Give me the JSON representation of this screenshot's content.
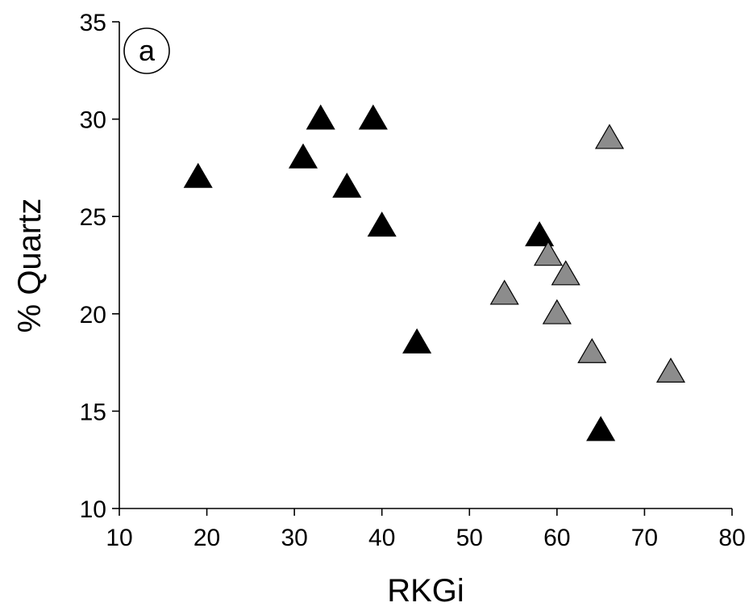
{
  "chart_data": {
    "type": "scatter",
    "panel_label": "a",
    "xlabel": "RKGi",
    "ylabel": "% Quartz",
    "xlim": [
      10,
      80
    ],
    "ylim": [
      10,
      35
    ],
    "xticks": [
      10,
      20,
      30,
      40,
      50,
      60,
      70,
      80
    ],
    "yticks": [
      10,
      15,
      20,
      25,
      30,
      35
    ],
    "grid": false,
    "series": [
      {
        "color": "#000000",
        "marker": "triangle",
        "points": [
          {
            "x": 19,
            "y": 27
          },
          {
            "x": 31,
            "y": 28
          },
          {
            "x": 33,
            "y": 30
          },
          {
            "x": 36,
            "y": 26.5
          },
          {
            "x": 39,
            "y": 30
          },
          {
            "x": 40,
            "y": 24.5
          },
          {
            "x": 44,
            "y": 18.5
          },
          {
            "x": 58,
            "y": 24
          },
          {
            "x": 65,
            "y": 14
          }
        ]
      },
      {
        "color": "#8c8c8c",
        "marker": "triangle",
        "points": [
          {
            "x": 54,
            "y": 21
          },
          {
            "x": 59,
            "y": 23
          },
          {
            "x": 60,
            "y": 20
          },
          {
            "x": 61,
            "y": 22
          },
          {
            "x": 64,
            "y": 18
          },
          {
            "x": 66,
            "y": 29
          },
          {
            "x": 73,
            "y": 17
          }
        ]
      }
    ]
  }
}
